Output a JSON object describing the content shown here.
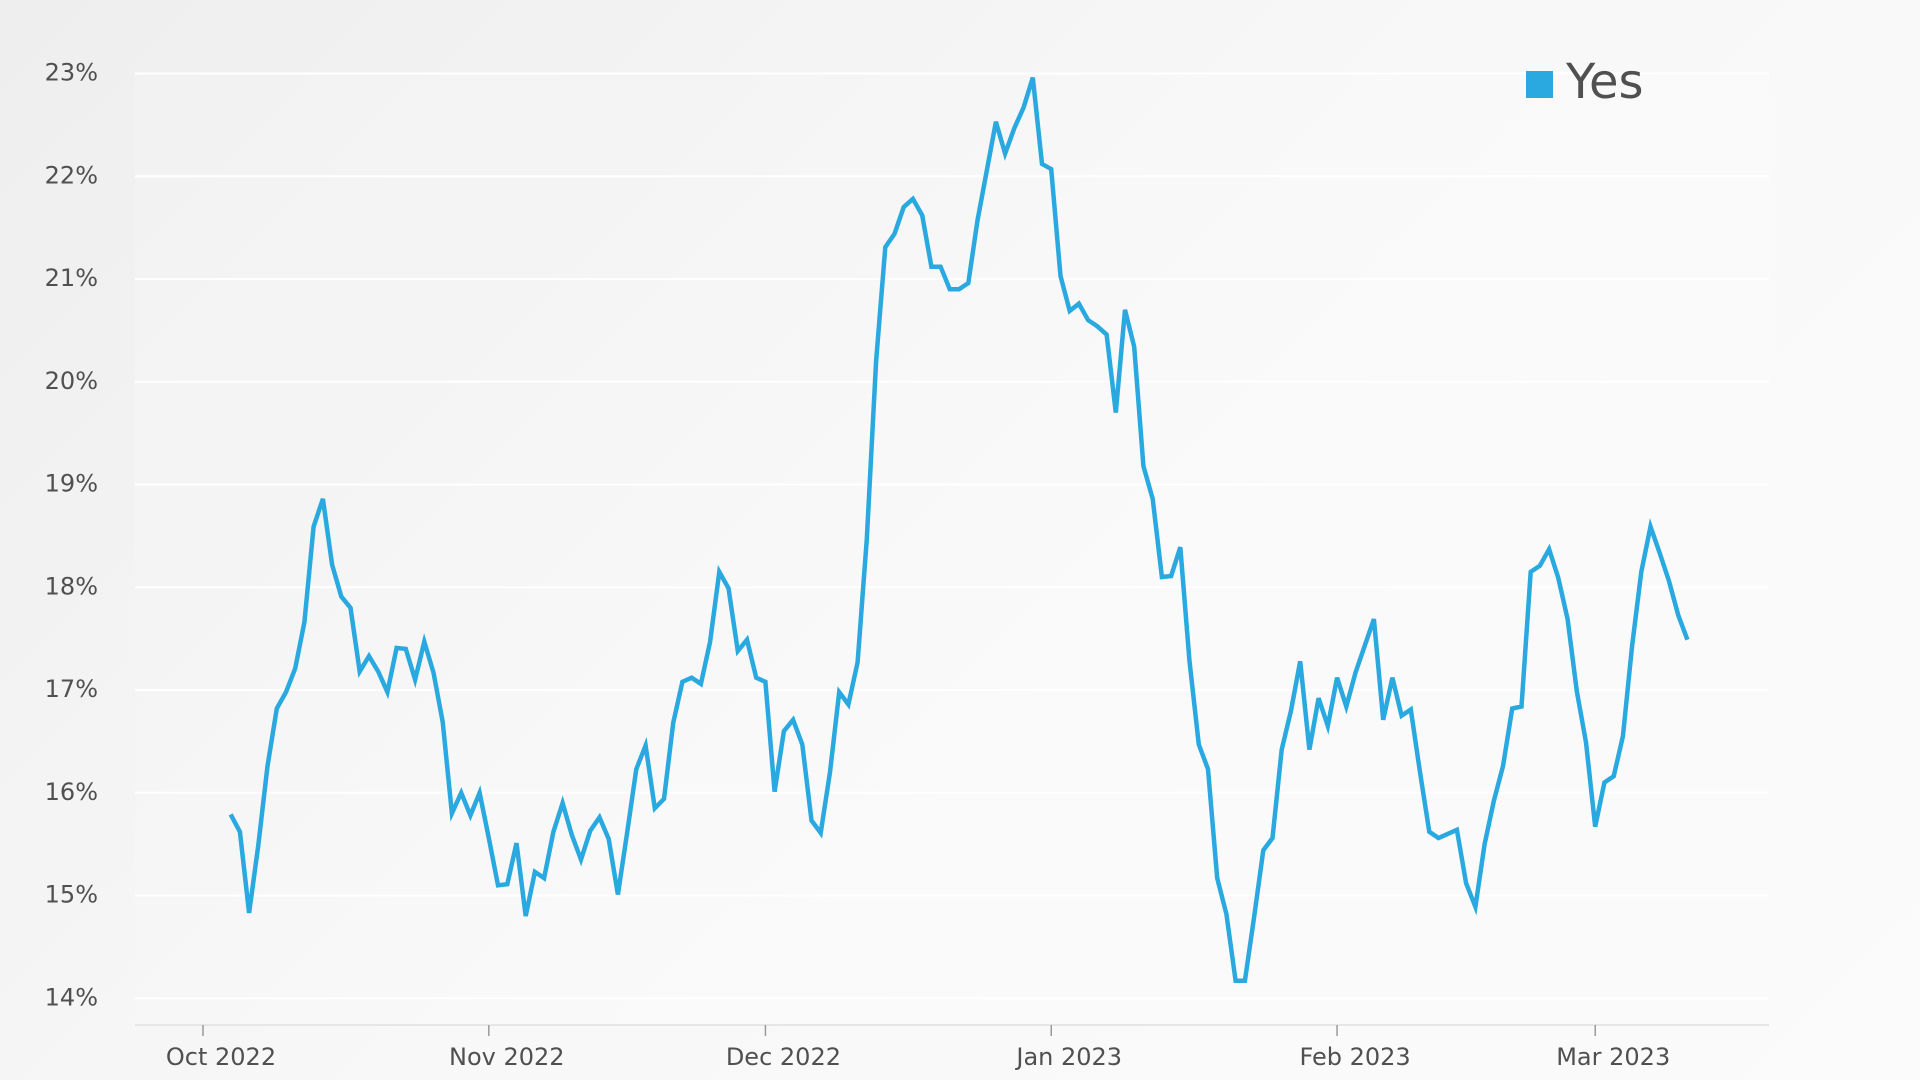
{
  "chart_data": {
    "type": "line",
    "categories": [
      "Oct 2022",
      null,
      null,
      null,
      null,
      null,
      null,
      null,
      null,
      null,
      null,
      null,
      null,
      null,
      null,
      null,
      null,
      null,
      null,
      null,
      null,
      null,
      null,
      null,
      null,
      null,
      null,
      null,
      null,
      null,
      null,
      "Nov 2022",
      null,
      null,
      null,
      null,
      null,
      null,
      null,
      null,
      null,
      null,
      null,
      null,
      null,
      null,
      null,
      null,
      null,
      null,
      null,
      null,
      null,
      null,
      null,
      null,
      null,
      null,
      null,
      null,
      null,
      "Dec 2022",
      null,
      null,
      null,
      null,
      null,
      null,
      null,
      null,
      null,
      null,
      null,
      null,
      null,
      null,
      null,
      null,
      null,
      null,
      null,
      null,
      null,
      null,
      null,
      null,
      null,
      null,
      null,
      null,
      null,
      null,
      "Jan 2023",
      null,
      null,
      null,
      null,
      null,
      null,
      null,
      null,
      null,
      null,
      null,
      null,
      null,
      null,
      null,
      null,
      null,
      null,
      null,
      null,
      null,
      null,
      null,
      null,
      null,
      null,
      null,
      null,
      null,
      null,
      "Feb 2023",
      null,
      null,
      null,
      null,
      null,
      null,
      null,
      null,
      null,
      null,
      null,
      null,
      null,
      null,
      null,
      null,
      null,
      null,
      null,
      null,
      null,
      null,
      null,
      null,
      null,
      null,
      null,
      "Mar 2023",
      null,
      null,
      null,
      null,
      null,
      null,
      null,
      null,
      null,
      null
    ],
    "series": [
      {
        "name": "Yes",
        "color": "#29a9e0",
        "values": [
          null,
          null,
          null,
          15.79,
          15.62,
          14.83,
          15.49,
          16.26,
          16.82,
          16.98,
          17.21,
          17.66,
          18.59,
          18.86,
          18.22,
          17.91,
          17.8,
          17.18,
          17.33,
          17.18,
          16.98,
          17.41,
          17.4,
          17.1,
          17.47,
          17.17,
          16.69,
          15.8,
          16.0,
          15.78,
          16.0,
          15.56,
          15.1,
          15.11,
          15.51,
          14.8,
          15.23,
          15.17,
          15.62,
          15.9,
          15.59,
          15.35,
          15.63,
          15.76,
          15.55,
          15.01,
          15.61,
          16.23,
          16.46,
          15.85,
          15.94,
          16.68,
          17.08,
          17.12,
          17.06,
          17.47,
          18.15,
          17.99,
          17.38,
          17.49,
          17.12,
          17.08,
          16.01,
          16.6,
          16.71,
          16.47,
          15.73,
          15.61,
          16.2,
          16.98,
          16.86,
          17.27,
          18.47,
          20.2,
          21.31,
          21.44,
          21.7,
          21.78,
          21.62,
          21.12,
          21.12,
          20.9,
          20.9,
          20.96,
          21.57,
          22.05,
          22.53,
          22.22,
          22.47,
          22.67,
          22.96,
          22.12,
          22.07,
          21.03,
          20.69,
          20.76,
          20.6,
          20.54,
          20.46,
          19.7,
          20.7,
          20.34,
          19.18,
          18.86,
          18.1,
          18.11,
          18.39,
          17.28,
          16.47,
          16.23,
          15.17,
          14.82,
          14.17,
          14.17,
          14.79,
          15.44,
          15.56,
          16.42,
          16.8,
          17.28,
          16.42,
          16.92,
          16.65,
          17.12,
          16.84,
          17.17,
          17.43,
          17.69,
          16.71,
          17.12,
          16.75,
          16.81,
          16.2,
          15.62,
          15.56,
          15.6,
          15.64,
          15.12,
          14.89,
          15.5,
          15.92,
          16.26,
          16.82,
          16.84,
          18.15,
          18.21,
          18.37,
          18.09,
          17.69,
          16.99,
          16.49,
          15.67,
          16.1,
          16.16,
          16.55,
          17.43,
          18.15,
          18.59,
          18.33,
          18.06,
          17.73,
          17.49
        ]
      }
    ],
    "ylim": [
      13.74,
      23
    ],
    "yticks": [
      {
        "value": 14,
        "label": "14%"
      },
      {
        "value": 15,
        "label": "15%"
      },
      {
        "value": 16,
        "label": "16%"
      },
      {
        "value": 17,
        "label": "17%"
      },
      {
        "value": 18,
        "label": "18%"
      },
      {
        "value": 19,
        "label": "19%"
      },
      {
        "value": 20,
        "label": "20%"
      },
      {
        "value": 21,
        "label": "21%"
      },
      {
        "value": 22,
        "label": "22%"
      },
      {
        "value": 23,
        "label": "23%"
      }
    ],
    "grid": true,
    "legend": "upper right"
  }
}
